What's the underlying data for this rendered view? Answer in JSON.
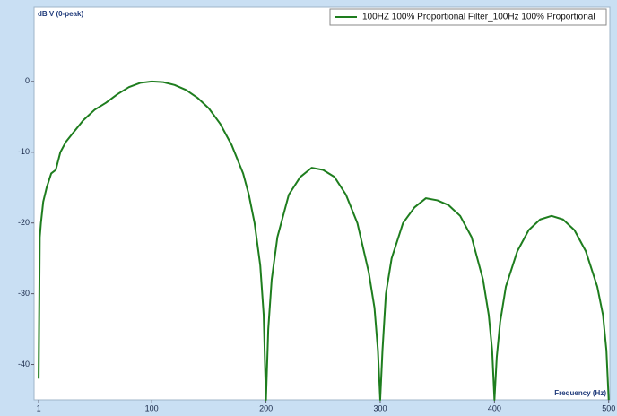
{
  "chart_data": {
    "type": "line",
    "y_label": "dB V (0-peak)",
    "x_label": "Frequency (Hz)",
    "x": [
      1,
      2,
      3,
      5,
      8,
      12,
      16,
      20,
      25,
      30,
      40,
      50,
      60,
      70,
      80,
      90,
      100,
      110,
      120,
      130,
      140,
      150,
      160,
      170,
      180,
      185,
      190,
      195,
      198,
      200,
      202,
      205,
      210,
      220,
      230,
      240,
      250,
      260,
      270,
      280,
      290,
      295,
      298,
      300,
      302,
      305,
      310,
      320,
      330,
      340,
      350,
      360,
      370,
      380,
      390,
      395,
      398,
      400,
      402,
      405,
      410,
      420,
      430,
      440,
      450,
      460,
      470,
      480,
      490,
      495,
      498,
      500
    ],
    "series": [
      {
        "name": "100HZ 100% Proportional Filter_100Hz 100% Proportional",
        "color": "#1e7d1e",
        "values": [
          -42,
          -22,
          -20,
          -17,
          -15,
          -13,
          -12.5,
          -10,
          -8.5,
          -7.5,
          -5.5,
          -4,
          -3,
          -1.8,
          -0.8,
          -0.2,
          0,
          -0.1,
          -0.5,
          -1.2,
          -2.3,
          -3.8,
          -6,
          -9,
          -13,
          -16,
          -20,
          -26,
          -33,
          -45,
          -35,
          -28,
          -22,
          -16,
          -13.5,
          -12.2,
          -12.5,
          -13.5,
          -16,
          -20,
          -27,
          -32,
          -38,
          -45,
          -38,
          -30,
          -25,
          -20,
          -17.8,
          -16.5,
          -16.8,
          -17.5,
          -19,
          -22,
          -28,
          -33,
          -38,
          -45,
          -39,
          -34,
          -29,
          -24,
          -21,
          -19.5,
          -19,
          -19.5,
          -21,
          -24,
          -29,
          -33,
          -38,
          -45
        ]
      }
    ],
    "xlim": [
      -3,
      501
    ],
    "ylim": [
      -45,
      10.5
    ],
    "xticks": [
      1,
      100,
      200,
      300,
      400,
      500
    ],
    "yticks": [
      0,
      -10,
      -20,
      -30,
      -40
    ],
    "legend": "top-right"
  }
}
